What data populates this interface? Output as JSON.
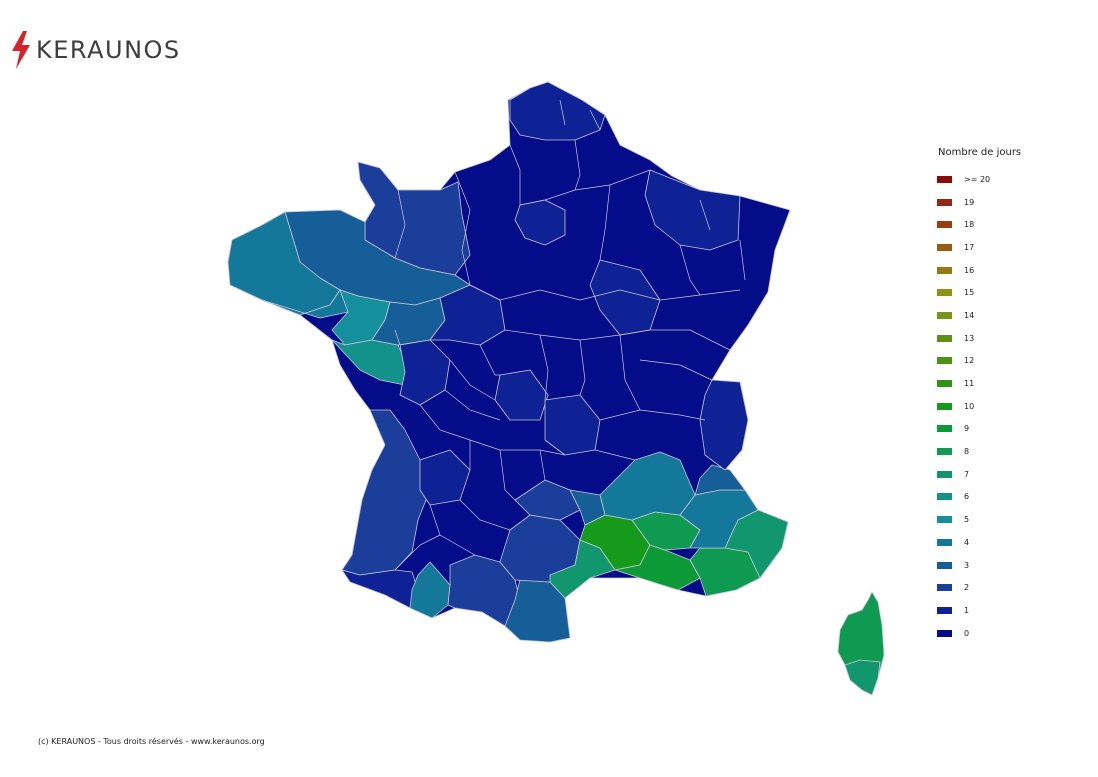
{
  "logo": {
    "text": "KERAUNOS",
    "icon": "lightning-bolt-icon",
    "accent_color": "#d5232a"
  },
  "legend": {
    "title": "Nombre de jours",
    "items": [
      {
        "label": ">= 20",
        "color": "#8b0a0a"
      },
      {
        "label": "19",
        "color": "#962512"
      },
      {
        "label": "18",
        "color": "#9a3d10"
      },
      {
        "label": "17",
        "color": "#9a5a10"
      },
      {
        "label": "16",
        "color": "#967a10"
      },
      {
        "label": "15",
        "color": "#909214"
      },
      {
        "label": "14",
        "color": "#7a9614"
      },
      {
        "label": "13",
        "color": "#609212"
      },
      {
        "label": "12",
        "color": "#4a9212"
      },
      {
        "label": "11",
        "color": "#2e9616"
      },
      {
        "label": "10",
        "color": "#169a1c"
      },
      {
        "label": "9",
        "color": "#0c9a36"
      },
      {
        "label": "8",
        "color": "#0f9a52"
      },
      {
        "label": "7",
        "color": "#12966e"
      },
      {
        "label": "6",
        "color": "#12928a"
      },
      {
        "label": "5",
        "color": "#14909c"
      },
      {
        "label": "4",
        "color": "#14789a"
      },
      {
        "label": "3",
        "color": "#165e98"
      },
      {
        "label": "2",
        "color": "#1a3e9a"
      },
      {
        "label": "1",
        "color": "#0e2296"
      },
      {
        "label": "0",
        "color": "#040c8a"
      }
    ]
  },
  "footer": {
    "text": "(c) KERAUNOS - Tous droits réservés - www.keraunos.org"
  }
}
